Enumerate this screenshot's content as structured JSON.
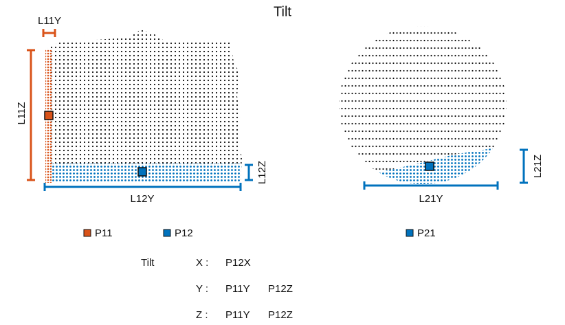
{
  "title": "Tilt",
  "dimensions": [
    {
      "label": "L11Y"
    },
    {
      "label": "L11Z"
    },
    {
      "label": "L12Y"
    },
    {
      "label": "L12Z"
    },
    {
      "label": "L21Y"
    },
    {
      "label": "L21Z"
    }
  ],
  "legend": [
    "P11",
    "P12",
    "P21"
  ],
  "mapping": {
    "title": "Tilt",
    "rows": [
      {
        "axis": "X :",
        "items": [
          "P12X"
        ]
      },
      {
        "axis": "Y :",
        "items": [
          "P11Y",
          "P12Z"
        ]
      },
      {
        "axis": "Z :",
        "items": [
          "P11Y",
          "P12Z"
        ]
      }
    ]
  }
}
